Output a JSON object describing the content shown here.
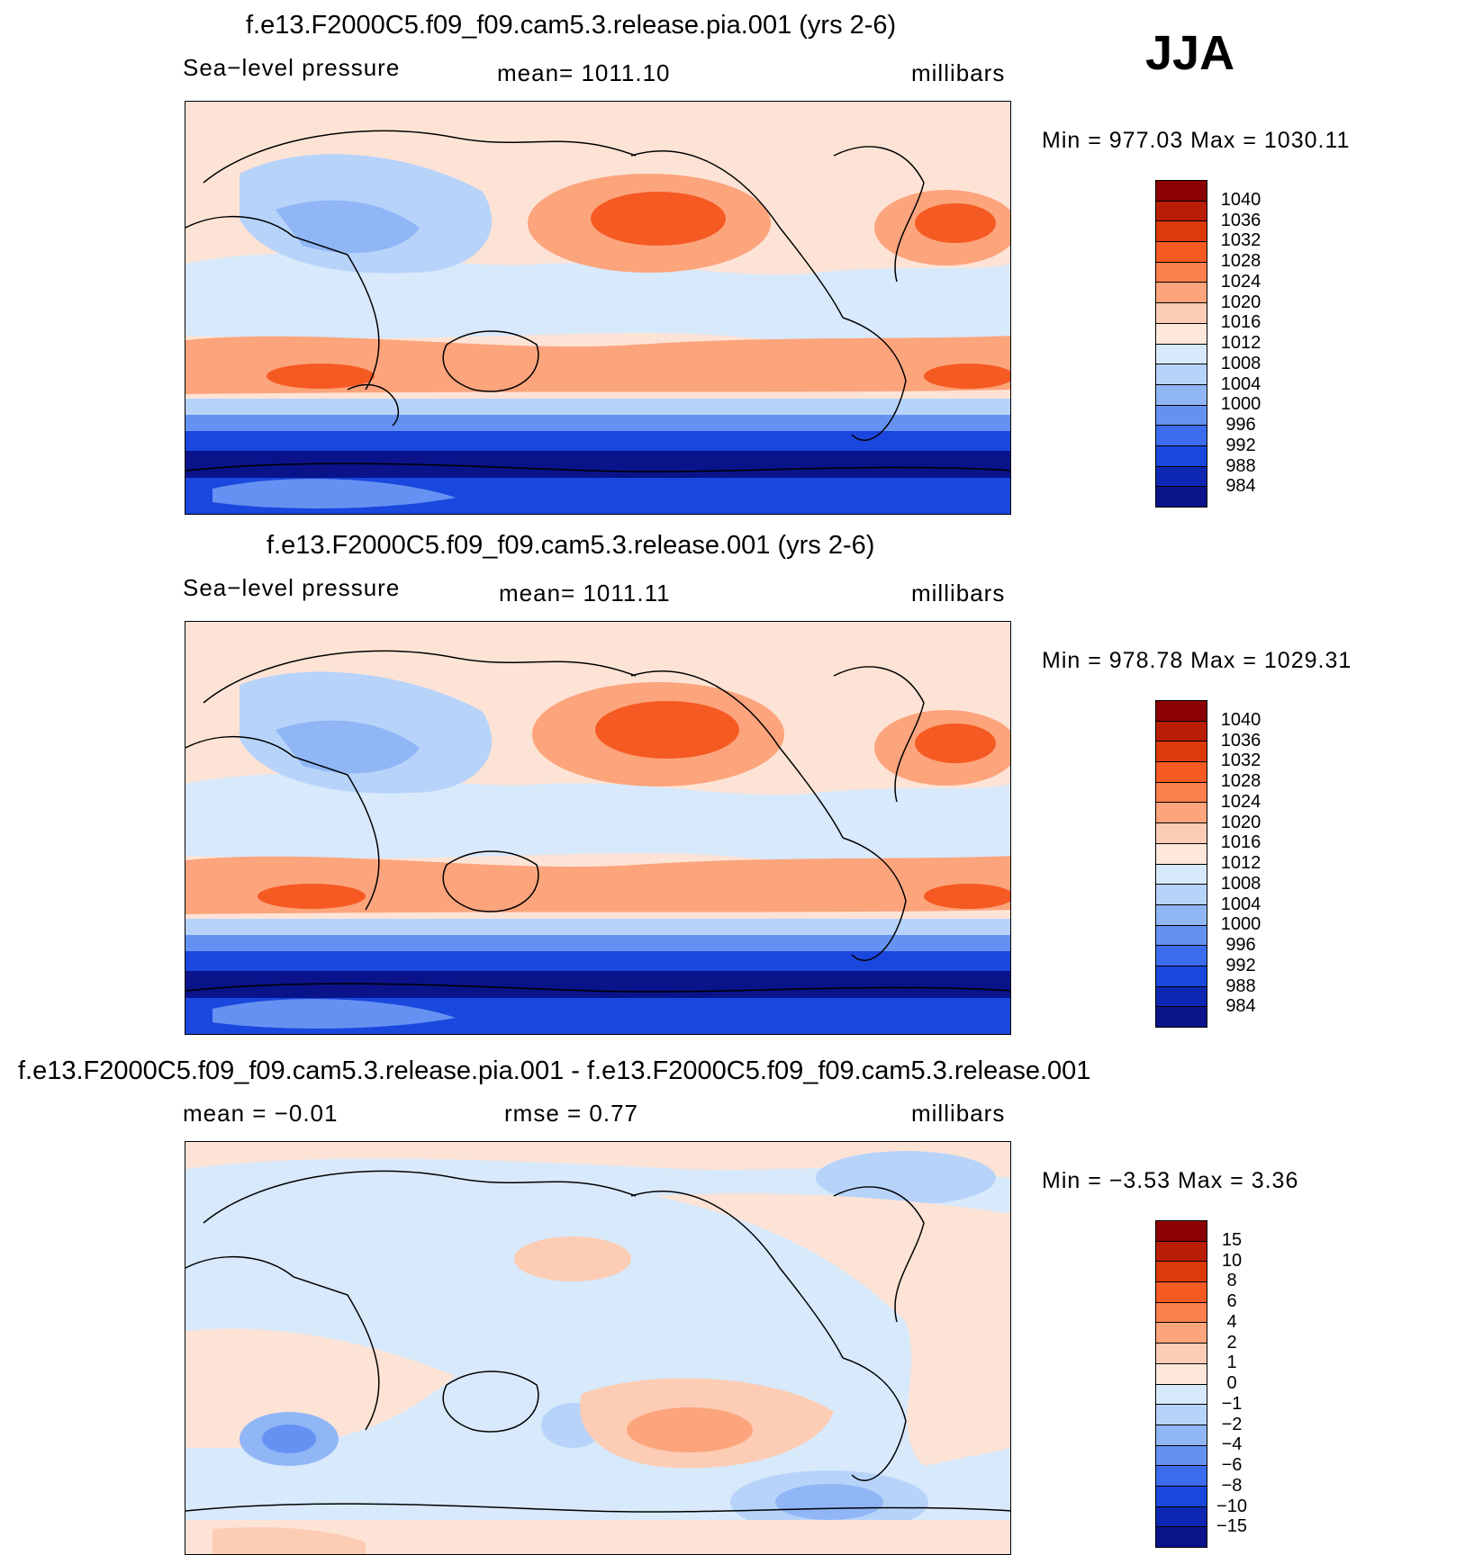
{
  "season": "JJA",
  "panels": [
    {
      "title": "f.e13.F2000C5.f09_f09.cam5.3.release.pia.001 (yrs 2-6)",
      "variable": "Sea−level pressure",
      "mean_text": "mean=  1011.10",
      "units": "millibars",
      "stats": "Min  =  977.03  Max  =  1030.11",
      "colorbar": {
        "labels": [
          "1040",
          "1036",
          "1032",
          "1028",
          "1024",
          "1020",
          "1016",
          "1012",
          "1008",
          "1004",
          "1000",
          "996",
          "992",
          "988",
          "984"
        ],
        "colors": [
          "#8b0000",
          "#b81e06",
          "#dd3a0c",
          "#f55a23",
          "#fb7f4a",
          "#fca47c",
          "#fdccb4",
          "#fde8da",
          "#d7e9fb",
          "#b7d3fa",
          "#90b6f6",
          "#6592f2",
          "#3b6ced",
          "#1a47dd",
          "#0e27b3",
          "#0a138a"
        ]
      }
    },
    {
      "title": "f.e13.F2000C5.f09_f09.cam5.3.release.001 (yrs 2-6)",
      "variable": "Sea−level pressure",
      "mean_text": "mean=  1011.11",
      "units": "millibars",
      "stats": "Min  =  978.78  Max  =  1029.31",
      "colorbar": {
        "labels": [
          "1040",
          "1036",
          "1032",
          "1028",
          "1024",
          "1020",
          "1016",
          "1012",
          "1008",
          "1004",
          "1000",
          "996",
          "992",
          "988",
          "984"
        ],
        "colors": [
          "#8b0000",
          "#b81e06",
          "#dd3a0c",
          "#f55a23",
          "#fb7f4a",
          "#fca47c",
          "#fdccb4",
          "#fde8da",
          "#d7e9fb",
          "#b7d3fa",
          "#90b6f6",
          "#6592f2",
          "#3b6ced",
          "#1a47dd",
          "#0e27b3",
          "#0a138a"
        ]
      }
    },
    {
      "title": "f.e13.F2000C5.f09_f09.cam5.3.release.pia.001 - f.e13.F2000C5.f09_f09.cam5.3.release.001",
      "mean_text": "mean  =   −0.01",
      "rmse_text": "rmse  =     0.77",
      "units": "millibars",
      "stats": "Min  =    −3.53  Max  =     3.36",
      "colorbar": {
        "labels": [
          "15",
          "10",
          "8",
          "6",
          "4",
          "2",
          "1",
          "0",
          "−1",
          "−2",
          "−4",
          "−6",
          "−8",
          "−10",
          "−15"
        ],
        "colors": [
          "#8b0000",
          "#b81e06",
          "#dd3a0c",
          "#f55a23",
          "#fb7f4a",
          "#fca47c",
          "#fdccb4",
          "#fde8da",
          "#d7e9fb",
          "#b7d3fa",
          "#90b6f6",
          "#6592f2",
          "#3b6ced",
          "#1a47dd",
          "#0e27b3",
          "#0a138a"
        ]
      }
    }
  ]
}
